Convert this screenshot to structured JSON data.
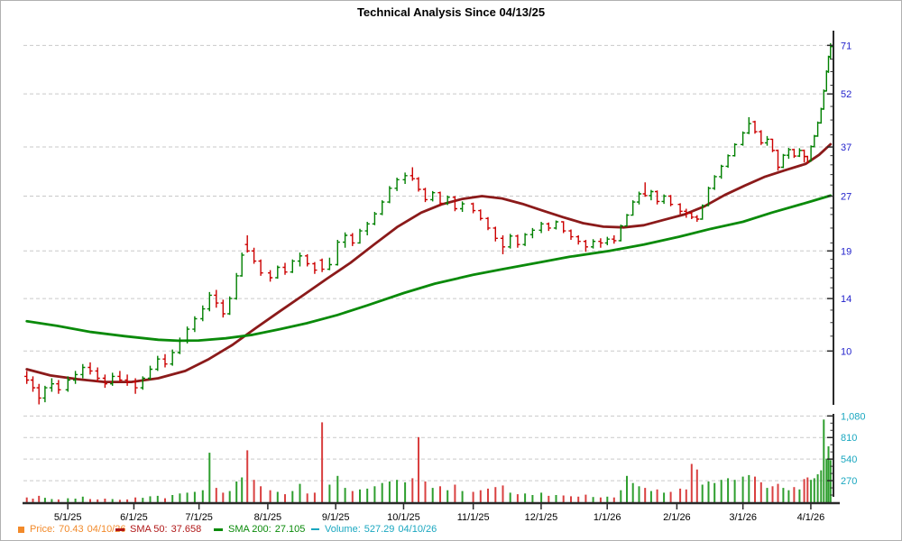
{
  "title": "Technical Analysis Since 04/13/25",
  "legend": {
    "price": {
      "label": "Price:",
      "value": "70.43",
      "date": "04/10/26"
    },
    "sma50": {
      "label": "SMA 50:",
      "value": "37.658",
      "date": ""
    },
    "sma200": {
      "label": "SMA 200:",
      "value": "27.105",
      "date": ""
    },
    "volume": {
      "label": "Volume:",
      "value": "527.29",
      "date": "04/10/26"
    }
  },
  "colors": {
    "up": "#008000",
    "down": "#CC0000",
    "sma50_line": "#8B1A1A",
    "sma200_line": "#0A8A0A",
    "volume_up": "#2E9E2E",
    "volume_down": "#D94040",
    "price_axis_label": "#2222CC",
    "volume_axis_label": "#1AA7C0",
    "x_axis_label": "#000000",
    "legend_price": "#F28A2A",
    "legend_sma50": "#B01818",
    "legend_sma200": "#0A8A0A",
    "legend_volume": "#1AA7C0",
    "gridline": "#C9C9C9",
    "axis_line": "#2A2A2A"
  },
  "axes": {
    "price_major_ticks": [
      71,
      52,
      37,
      27,
      19,
      14,
      10
    ],
    "price_minor_ticks": [
      11,
      12,
      13,
      15,
      16,
      17,
      18,
      20,
      22,
      24,
      25,
      29,
      31,
      33,
      35,
      40,
      44,
      48,
      55,
      60,
      65
    ],
    "price_scale": "log",
    "volume_major_ticks": [
      {
        "v": 1080,
        "label": "1,080"
      },
      {
        "v": 810,
        "label": "810"
      },
      {
        "v": 540,
        "label": "540"
      },
      {
        "v": 270,
        "label": "270"
      }
    ],
    "volume_minor_ticks": [
      90,
      180,
      360,
      450,
      630,
      720,
      900,
      990
    ],
    "x_ticks": [
      {
        "m": 0.658,
        "label": "5/1/25"
      },
      {
        "m": 1.638,
        "label": "6/1/25"
      },
      {
        "m": 2.604,
        "label": "7/1/25"
      },
      {
        "m": 3.624,
        "label": "8/1/25"
      },
      {
        "m": 4.631,
        "label": "9/1/25"
      },
      {
        "m": 5.638,
        "label": "10/1/25"
      },
      {
        "m": 6.671,
        "label": "11/1/25"
      },
      {
        "m": 7.678,
        "label": "12/1/25"
      },
      {
        "m": 8.658,
        "label": "1/1/26"
      },
      {
        "m": 9.691,
        "label": "2/1/26"
      },
      {
        "m": 10.671,
        "label": "3/1/26"
      },
      {
        "m": 11.678,
        "label": "4/1/26"
      }
    ]
  },
  "chart_data": {
    "type": "ohlc-with-volume",
    "title": "Technical Analysis Since 04/13/25",
    "x_unit": "months_since_04/13/25",
    "x_range": [
      0,
      12
    ],
    "price_scale": "log",
    "price_axis_range": [
      7,
      75
    ],
    "volume_axis_range": [
      0,
      1140
    ],
    "bars_format": [
      "m",
      "open",
      "high",
      "low",
      "close",
      "volume"
    ],
    "bars": [
      [
        0.05,
        8.5,
        8.8,
        8.1,
        8.3,
        60
      ],
      [
        0.14,
        8.3,
        8.5,
        7.7,
        7.9,
        45
      ],
      [
        0.23,
        7.9,
        8.1,
        7.1,
        7.4,
        80
      ],
      [
        0.32,
        7.4,
        8.0,
        7.2,
        7.9,
        55
      ],
      [
        0.42,
        7.9,
        8.4,
        7.7,
        8.1,
        40
      ],
      [
        0.52,
        8.1,
        8.3,
        7.6,
        7.8,
        35
      ],
      [
        0.66,
        7.8,
        8.5,
        7.7,
        8.3,
        50
      ],
      [
        0.77,
        8.3,
        8.8,
        8.1,
        8.6,
        45
      ],
      [
        0.88,
        8.6,
        9.2,
        8.4,
        9.0,
        70
      ],
      [
        0.99,
        9.0,
        9.3,
        8.6,
        8.8,
        40
      ],
      [
        1.1,
        8.8,
        9.0,
        8.2,
        8.4,
        35
      ],
      [
        1.21,
        8.4,
        8.6,
        7.9,
        8.1,
        45
      ],
      [
        1.32,
        8.1,
        8.7,
        8.0,
        8.5,
        40
      ],
      [
        1.43,
        8.5,
        8.8,
        8.2,
        8.3,
        30
      ],
      [
        1.54,
        8.3,
        8.6,
        8.0,
        8.2,
        35
      ],
      [
        1.66,
        8.2,
        8.4,
        7.6,
        7.9,
        60
      ],
      [
        1.77,
        7.9,
        8.5,
        7.8,
        8.4,
        55
      ],
      [
        1.88,
        8.4,
        9.1,
        8.3,
        8.9,
        75
      ],
      [
        1.99,
        8.9,
        9.7,
        8.8,
        9.5,
        80
      ],
      [
        2.1,
        9.5,
        9.8,
        9.0,
        9.2,
        50
      ],
      [
        2.21,
        9.2,
        10.1,
        9.1,
        9.9,
        90
      ],
      [
        2.32,
        9.9,
        10.9,
        9.8,
        10.7,
        110
      ],
      [
        2.43,
        10.7,
        11.7,
        10.5,
        11.5,
        120
      ],
      [
        2.54,
        11.5,
        12.5,
        11.3,
        12.3,
        130
      ],
      [
        2.66,
        12.3,
        13.4,
        12.1,
        13.1,
        150
      ],
      [
        2.76,
        13.1,
        14.6,
        12.9,
        14.3,
        620
      ],
      [
        2.86,
        14.3,
        14.8,
        13.2,
        13.6,
        180
      ],
      [
        2.96,
        13.6,
        13.9,
        12.4,
        12.7,
        120
      ],
      [
        3.06,
        12.7,
        14.2,
        12.6,
        14.0,
        140
      ],
      [
        3.16,
        14.0,
        16.5,
        13.9,
        16.2,
        260
      ],
      [
        3.24,
        16.2,
        18.8,
        16.1,
        18.5,
        310
      ],
      [
        3.32,
        19.8,
        21.0,
        18.8,
        19.0,
        650
      ],
      [
        3.42,
        19.0,
        19.4,
        17.5,
        17.8,
        280
      ],
      [
        3.52,
        17.8,
        18.0,
        16.2,
        16.5,
        200
      ],
      [
        3.66,
        16.5,
        16.8,
        15.6,
        16.0,
        150
      ],
      [
        3.77,
        16.0,
        17.3,
        15.9,
        17.1,
        130
      ],
      [
        3.88,
        17.1,
        17.6,
        16.3,
        16.6,
        100
      ],
      [
        3.99,
        16.6,
        18.0,
        16.5,
        17.8,
        140
      ],
      [
        4.1,
        17.8,
        18.8,
        17.2,
        18.4,
        230
      ],
      [
        4.21,
        18.4,
        18.6,
        17.2,
        17.5,
        110
      ],
      [
        4.32,
        17.5,
        17.7,
        16.4,
        16.8,
        120
      ],
      [
        4.43,
        17.9,
        18.1,
        16.6,
        16.9,
        1000
      ],
      [
        4.54,
        16.9,
        18.2,
        16.8,
        17.4,
        220
      ],
      [
        4.66,
        17.4,
        20.4,
        17.3,
        20.1,
        330
      ],
      [
        4.77,
        20.1,
        21.4,
        19.4,
        21.0,
        180
      ],
      [
        4.88,
        21.0,
        21.3,
        19.6,
        20.0,
        140
      ],
      [
        4.99,
        20.0,
        21.9,
        19.9,
        21.6,
        160
      ],
      [
        5.1,
        21.6,
        22.9,
        21.0,
        22.6,
        170
      ],
      [
        5.21,
        22.6,
        24.4,
        22.4,
        24.1,
        200
      ],
      [
        5.32,
        24.1,
        26.3,
        23.9,
        26.0,
        240
      ],
      [
        5.43,
        26.0,
        28.8,
        25.8,
        28.4,
        260
      ],
      [
        5.54,
        28.4,
        30.4,
        27.9,
        30.0,
        280
      ],
      [
        5.66,
        30.0,
        31.4,
        29.2,
        30.8,
        250
      ],
      [
        5.77,
        30.8,
        32.5,
        29.8,
        30.2,
        300
      ],
      [
        5.86,
        30.2,
        30.5,
        27.8,
        28.2,
        815
      ],
      [
        5.96,
        28.2,
        28.5,
        26.0,
        26.4,
        260
      ],
      [
        6.07,
        26.4,
        27.9,
        26.1,
        27.6,
        180
      ],
      [
        6.18,
        27.6,
        27.8,
        25.4,
        25.8,
        200
      ],
      [
        6.29,
        25.8,
        27.1,
        25.5,
        26.8,
        150
      ],
      [
        6.4,
        26.8,
        27.0,
        24.5,
        24.9,
        220
      ],
      [
        6.51,
        24.9,
        26.1,
        24.4,
        25.7,
        140
      ],
      [
        6.67,
        25.7,
        25.9,
        24.2,
        24.6,
        130
      ],
      [
        6.78,
        24.6,
        24.8,
        23.1,
        23.4,
        150
      ],
      [
        6.89,
        23.4,
        23.6,
        21.7,
        22.0,
        170
      ],
      [
        7.0,
        22.0,
        22.2,
        20.2,
        20.6,
        190
      ],
      [
        7.11,
        20.6,
        21.0,
        18.6,
        19.5,
        210
      ],
      [
        7.22,
        19.5,
        21.2,
        19.3,
        20.9,
        120
      ],
      [
        7.33,
        20.9,
        21.1,
        19.4,
        19.8,
        100
      ],
      [
        7.44,
        19.8,
        21.3,
        19.6,
        21.1,
        110
      ],
      [
        7.55,
        21.1,
        22.0,
        20.6,
        21.7,
        90
      ],
      [
        7.68,
        21.7,
        22.9,
        21.3,
        22.6,
        120
      ],
      [
        7.79,
        22.6,
        22.8,
        21.6,
        22.0,
        80
      ],
      [
        7.9,
        22.0,
        23.1,
        21.8,
        22.9,
        90
      ],
      [
        8.01,
        22.9,
        23.0,
        21.3,
        21.6,
        85
      ],
      [
        8.12,
        21.6,
        21.8,
        20.4,
        20.8,
        75
      ],
      [
        8.23,
        20.8,
        21.0,
        19.8,
        20.2,
        70
      ],
      [
        8.34,
        20.2,
        20.4,
        18.9,
        19.5,
        95
      ],
      [
        8.45,
        19.5,
        20.5,
        19.3,
        20.2,
        65
      ],
      [
        8.56,
        20.2,
        20.6,
        19.4,
        20.0,
        60
      ],
      [
        8.66,
        20.0,
        20.8,
        19.7,
        20.5,
        70
      ],
      [
        8.76,
        20.5,
        21.0,
        19.9,
        20.3,
        60
      ],
      [
        8.86,
        20.3,
        22.5,
        20.2,
        22.3,
        150
      ],
      [
        8.95,
        22.3,
        24.1,
        22.2,
        23.9,
        330
      ],
      [
        9.04,
        23.9,
        26.3,
        23.8,
        26.0,
        240
      ],
      [
        9.13,
        26.0,
        27.8,
        25.6,
        27.4,
        200
      ],
      [
        9.22,
        27.4,
        29.5,
        26.9,
        27.1,
        180
      ],
      [
        9.31,
        27.1,
        28.1,
        26.3,
        27.8,
        140
      ],
      [
        9.4,
        27.8,
        28.0,
        25.6,
        26.1,
        160
      ],
      [
        9.5,
        26.1,
        27.3,
        25.7,
        27.0,
        120
      ],
      [
        9.6,
        27.0,
        27.2,
        25.3,
        25.6,
        130
      ],
      [
        9.74,
        25.6,
        25.8,
        24.0,
        24.5,
        170
      ],
      [
        9.83,
        24.5,
        24.9,
        23.5,
        24.2,
        160
      ],
      [
        9.91,
        24.2,
        24.4,
        23.3,
        23.6,
        480
      ],
      [
        9.99,
        23.6,
        23.9,
        22.9,
        23.3,
        410
      ],
      [
        10.07,
        23.3,
        25.6,
        23.2,
        25.4,
        220
      ],
      [
        10.16,
        25.4,
        28.7,
        25.3,
        28.4,
        260
      ],
      [
        10.25,
        28.4,
        30.9,
        28.1,
        30.6,
        240
      ],
      [
        10.35,
        30.6,
        33.0,
        30.2,
        32.7,
        280
      ],
      [
        10.45,
        32.7,
        35.3,
        32.4,
        35.0,
        300
      ],
      [
        10.55,
        35.0,
        37.9,
        34.8,
        37.6,
        280
      ],
      [
        10.67,
        37.6,
        40.9,
        37.3,
        40.5,
        320
      ],
      [
        10.76,
        40.5,
        44.8,
        40.2,
        43.0,
        340
      ],
      [
        10.85,
        43.5,
        43.8,
        40.3,
        40.8,
        320
      ],
      [
        10.94,
        40.8,
        41.2,
        37.5,
        38.0,
        250
      ],
      [
        11.03,
        38.0,
        39.7,
        37.3,
        38.9,
        180
      ],
      [
        11.11,
        38.9,
        39.0,
        35.8,
        36.2,
        200
      ],
      [
        11.19,
        36.2,
        36.4,
        31.8,
        32.5,
        230
      ],
      [
        11.27,
        32.5,
        35.4,
        32.3,
        35.1,
        180
      ],
      [
        11.35,
        35.1,
        36.8,
        34.3,
        36.4,
        150
      ],
      [
        11.43,
        36.4,
        36.6,
        34.5,
        34.9,
        190
      ],
      [
        11.51,
        34.9,
        36.7,
        34.7,
        36.2,
        160
      ],
      [
        11.58,
        36.2,
        36.4,
        33.5,
        34.8,
        290
      ],
      [
        11.63,
        34.8,
        35.0,
        33.4,
        33.8,
        310
      ],
      [
        11.68,
        33.8,
        37.4,
        33.7,
        37.1,
        280
      ],
      [
        11.73,
        37.1,
        40.0,
        36.9,
        39.7,
        300
      ],
      [
        11.78,
        39.7,
        43.6,
        39.5,
        43.2,
        350
      ],
      [
        11.83,
        43.2,
        47.6,
        43.0,
        47.2,
        400
      ],
      [
        11.87,
        47.2,
        53.5,
        47.0,
        53.0,
        1035
      ],
      [
        11.91,
        53.0,
        60.5,
        52.8,
        60.0,
        545
      ],
      [
        11.94,
        60.0,
        66.5,
        59.5,
        66.0,
        700
      ],
      [
        11.97,
        66.0,
        72.0,
        64.8,
        70.43,
        527
      ]
    ],
    "sma50": [
      [
        0.05,
        8.9
      ],
      [
        0.4,
        8.55
      ],
      [
        0.8,
        8.35
      ],
      [
        1.2,
        8.2
      ],
      [
        1.6,
        8.2
      ],
      [
        2.0,
        8.4
      ],
      [
        2.4,
        8.8
      ],
      [
        2.75,
        9.5
      ],
      [
        3.1,
        10.4
      ],
      [
        3.45,
        11.6
      ],
      [
        3.8,
        12.9
      ],
      [
        4.15,
        14.3
      ],
      [
        4.5,
        15.9
      ],
      [
        4.85,
        17.6
      ],
      [
        5.2,
        19.8
      ],
      [
        5.55,
        22.2
      ],
      [
        5.9,
        24.3
      ],
      [
        6.2,
        25.6
      ],
      [
        6.5,
        26.5
      ],
      [
        6.8,
        27.0
      ],
      [
        7.1,
        26.6
      ],
      [
        7.4,
        25.7
      ],
      [
        7.7,
        24.6
      ],
      [
        8.0,
        23.6
      ],
      [
        8.3,
        22.7
      ],
      [
        8.6,
        22.2
      ],
      [
        8.9,
        22.1
      ],
      [
        9.2,
        22.4
      ],
      [
        9.5,
        23.2
      ],
      [
        9.8,
        24.0
      ],
      [
        10.1,
        25.3
      ],
      [
        10.4,
        27.2
      ],
      [
        10.7,
        28.9
      ],
      [
        11.0,
        30.6
      ],
      [
        11.3,
        31.9
      ],
      [
        11.6,
        33.2
      ],
      [
        11.8,
        35.2
      ],
      [
        11.97,
        37.658
      ]
    ],
    "sma200": [
      [
        0.05,
        12.1
      ],
      [
        0.5,
        11.75
      ],
      [
        1.0,
        11.3
      ],
      [
        1.5,
        11.0
      ],
      [
        2.0,
        10.75
      ],
      [
        2.3,
        10.68
      ],
      [
        2.6,
        10.7
      ],
      [
        3.0,
        10.85
      ],
      [
        3.4,
        11.1
      ],
      [
        3.8,
        11.5
      ],
      [
        4.2,
        11.95
      ],
      [
        4.66,
        12.6
      ],
      [
        5.1,
        13.4
      ],
      [
        5.64,
        14.5
      ],
      [
        6.1,
        15.4
      ],
      [
        6.67,
        16.3
      ],
      [
        7.1,
        16.9
      ],
      [
        7.68,
        17.7
      ],
      [
        8.1,
        18.3
      ],
      [
        8.69,
        19.0
      ],
      [
        9.2,
        19.8
      ],
      [
        9.72,
        20.8
      ],
      [
        10.2,
        21.9
      ],
      [
        10.67,
        22.9
      ],
      [
        11.1,
        24.3
      ],
      [
        11.68,
        26.1
      ],
      [
        11.97,
        27.105
      ]
    ]
  }
}
